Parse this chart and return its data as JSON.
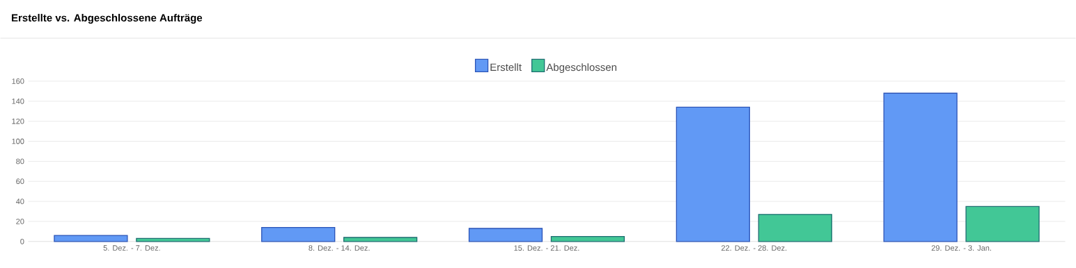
{
  "chart_data": {
    "type": "bar",
    "title": "Erstellte vs. Abgeschlossene Aufträge",
    "categories": [
      "5. Dez. - 7. Dez.",
      "8. Dez. - 14. Dez.",
      "15. Dez. - 21. Dez.",
      "22. Dez. - 28. Dez.",
      "29. Dez. - 3. Jan."
    ],
    "series": [
      {
        "name": "Erstellt",
        "color": "#6199f5",
        "values": [
          6,
          14,
          13,
          134,
          148
        ]
      },
      {
        "name": "Abgeschlossen",
        "color": "#42c796",
        "values": [
          3,
          4,
          5,
          27,
          35
        ]
      }
    ],
    "ylim": [
      0,
      160
    ],
    "yticks": [
      0,
      20,
      40,
      60,
      80,
      100,
      120,
      140,
      160
    ],
    "grid": "y",
    "legend": "top"
  }
}
